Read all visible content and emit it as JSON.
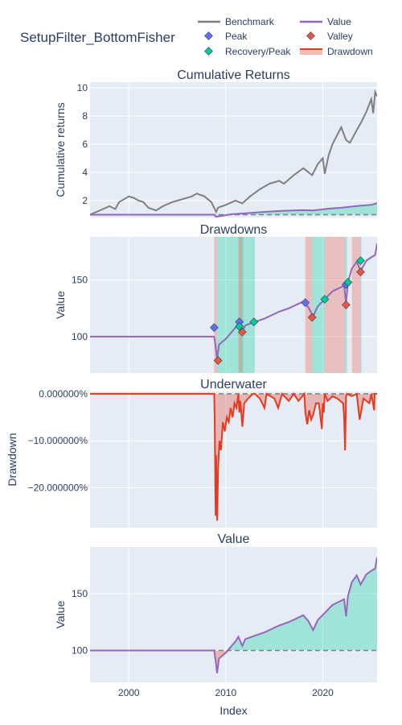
{
  "title": "SetupFilter_BottomFisher",
  "legend": {
    "benchmark": "Benchmark",
    "value": "Value",
    "peak": "Peak",
    "valley": "Valley",
    "recovery_peak": "Recovery/Peak",
    "drawdown": "Drawdown"
  },
  "colors": {
    "benchmark": "#7f7f7f",
    "value": "#9467bd",
    "peak": "#636efa",
    "valley": "#ef553b",
    "recovery": "#00cc96",
    "drawdown": "#e6391e",
    "plot_bg": "#e5ecf6",
    "grid": "#ffffff",
    "text": "#2a3f5f"
  },
  "chart_data": [
    {
      "type": "line",
      "title": "Cumulative Returns",
      "xlabel": "",
      "ylabel": "Cumulative returns",
      "xlim": [
        1996.0,
        2025.6
      ],
      "ylim": [
        0.8,
        10.4
      ],
      "xticks": [],
      "yticks": [
        2,
        4,
        6,
        8,
        10
      ],
      "grid": true,
      "series": [
        {
          "name": "Benchmark",
          "x": [
            1996.0,
            1997.0,
            1998.0,
            1998.6,
            1999.0,
            2000.0,
            2000.5,
            2001.0,
            2001.5,
            2002.0,
            2002.8,
            2003.5,
            2004.5,
            2005.5,
            2006.5,
            2007.0,
            2007.8,
            2008.5,
            2009.0,
            2009.2,
            2010.0,
            2011.0,
            2011.7,
            2012.5,
            2013.5,
            2014.5,
            2015.5,
            2016.0,
            2017.0,
            2018.0,
            2018.9,
            2019.5,
            2020.0,
            2020.2,
            2020.6,
            2021.0,
            2021.9,
            2022.4,
            2022.8,
            2023.5,
            2024.0,
            2024.5,
            2025.0,
            2025.2,
            2025.4,
            2025.6
          ],
          "values": [
            1.0,
            1.3,
            1.6,
            1.4,
            1.9,
            2.3,
            2.2,
            2.0,
            1.9,
            1.5,
            1.3,
            1.6,
            1.9,
            2.1,
            2.3,
            2.5,
            2.3,
            1.9,
            1.2,
            1.5,
            1.7,
            2.0,
            1.8,
            2.3,
            2.8,
            3.2,
            3.4,
            3.2,
            3.8,
            4.3,
            3.8,
            4.6,
            5.0,
            3.9,
            5.2,
            6.0,
            7.2,
            6.3,
            6.1,
            7.0,
            7.6,
            8.3,
            9.2,
            8.2,
            9.7,
            9.4
          ]
        },
        {
          "name": "Value",
          "x": [
            1996.0,
            2008.8,
            2009.0,
            2010.5,
            2012.0,
            2014.0,
            2016.0,
            2018.0,
            2019.0,
            2020.5,
            2022.0,
            2023.5,
            2025.0,
            2025.6
          ],
          "values": [
            1.0,
            1.0,
            0.85,
            1.03,
            1.1,
            1.2,
            1.28,
            1.32,
            1.3,
            1.42,
            1.5,
            1.62,
            1.7,
            1.82
          ]
        }
      ]
    },
    {
      "type": "line",
      "title": "Drawdowns",
      "xlabel": "",
      "ylabel": "Value",
      "xlim": [
        1996.0,
        2025.6
      ],
      "ylim": [
        68,
        188
      ],
      "yticks": [
        100,
        150
      ],
      "grid": true,
      "drawdown_periods": [
        {
          "start": 2008.8,
          "valley": 2009.1,
          "end": 2013.0
        },
        {
          "start": 2011.3,
          "valley": 2011.7,
          "end": 2011.7
        },
        {
          "start": 2018.2,
          "valley": 2018.9,
          "end": 2020.2
        },
        {
          "start": 2020.2,
          "valley": 2022.3,
          "end": 2022.5
        },
        {
          "start": 2023.0,
          "valley": 2023.9,
          "end": 2023.9
        }
      ],
      "series": [
        {
          "name": "Value",
          "x": [
            1996.0,
            2008.8,
            2009.0,
            2009.1,
            2009.3,
            2010.0,
            2010.5,
            2011.0,
            2011.3,
            2011.7,
            2012.0,
            2013.0,
            2014.0,
            2015.5,
            2016.5,
            2018.0,
            2018.5,
            2019.0,
            2019.5,
            2020.2,
            2021.0,
            2022.2,
            2022.4,
            2022.6,
            2023.0,
            2023.5,
            2023.9,
            2024.5,
            2025.0,
            2025.4,
            2025.6
          ],
          "values": [
            100,
            100,
            88,
            80,
            93,
            98,
            103,
            108,
            112,
            104,
            110,
            113,
            116,
            122,
            125,
            131,
            126,
            118,
            127,
            133,
            140,
            145,
            130,
            148,
            160,
            166,
            158,
            167,
            170,
            172,
            182
          ]
        }
      ],
      "markers": {
        "peak": {
          "x": [
            2008.8,
            2011.4,
            2018.2,
            2022.4
          ],
          "y": [
            108,
            113,
            130,
            146
          ]
        },
        "valley": {
          "x": [
            2009.2,
            2011.7,
            2018.9,
            2022.4,
            2023.9
          ],
          "y": [
            79,
            104,
            117,
            128,
            157
          ]
        },
        "recovery": {
          "x": [
            2011.4,
            2012.9,
            2020.2,
            2022.6,
            2023.9
          ],
          "y": [
            109,
            113,
            133,
            148,
            167
          ]
        }
      }
    },
    {
      "type": "area",
      "title": "Underwater",
      "xlabel": "",
      "ylabel": "Drawdown",
      "xlim": [
        1996.0,
        2025.6
      ],
      "ylim": [
        -0.285,
        0.005
      ],
      "yticks": [
        0,
        -0.1,
        -0.2
      ],
      "ytick_labels": [
        "0.000000%",
        "−10.000000%",
        "−20.000000%"
      ],
      "grid": true,
      "series": [
        {
          "name": "Drawdown",
          "x": [
            1996.0,
            2008.8,
            2008.85,
            2008.95,
            2009.0,
            2009.05,
            2009.12,
            2009.2,
            2009.35,
            2009.5,
            2009.7,
            2009.9,
            2010.1,
            2010.3,
            2010.5,
            2010.7,
            2010.9,
            2011.1,
            2011.3,
            2011.4,
            2011.5,
            2011.6,
            2011.7,
            2011.9,
            2012.3,
            2012.8,
            2013.0,
            2013.5,
            2014.0,
            2014.2,
            2015.0,
            2015.4,
            2015.8,
            2016.5,
            2017.0,
            2017.5,
            2018.1,
            2018.2,
            2018.4,
            2018.6,
            2018.8,
            2019.0,
            2019.3,
            2019.6,
            2019.9,
            2020.0,
            2020.1,
            2020.2,
            2020.5,
            2021.0,
            2021.5,
            2022.1,
            2022.2,
            2022.3,
            2022.4,
            2022.5,
            2023.0,
            2023.5,
            2023.8,
            2024.2,
            2024.8,
            2025.0,
            2025.3,
            2025.35,
            2025.6
          ],
          "values": [
            0,
            0,
            -0.05,
            -0.26,
            -0.13,
            -0.22,
            -0.27,
            -0.16,
            -0.1,
            -0.12,
            -0.06,
            -0.08,
            -0.05,
            -0.06,
            -0.03,
            -0.05,
            -0.02,
            -0.03,
            0,
            -0.04,
            -0.015,
            -0.04,
            -0.07,
            -0.02,
            -0.01,
            0,
            0,
            -0.01,
            -0.03,
            0,
            -0.01,
            -0.03,
            0,
            -0.015,
            0,
            -0.015,
            0,
            -0.04,
            -0.065,
            -0.035,
            -0.055,
            -0.045,
            -0.02,
            -0.02,
            -0.075,
            -0.02,
            -0.04,
            0,
            -0.015,
            -0.005,
            -0.01,
            -0.02,
            -0.05,
            -0.12,
            -0.005,
            0,
            -0.005,
            0,
            -0.055,
            -0.01,
            -0.02,
            0,
            -0.035,
            0,
            0
          ]
        }
      ]
    },
    {
      "type": "area",
      "title": "Value",
      "xlabel": "Index",
      "ylabel": "Value",
      "xlim": [
        1996.0,
        2025.6
      ],
      "ylim": [
        72,
        191
      ],
      "xticks": [
        2000,
        2010,
        2020
      ],
      "yticks": [
        100,
        150
      ],
      "grid": true,
      "baseline": 100,
      "series": [
        {
          "name": "Value",
          "x": [
            1996.0,
            2008.8,
            2009.0,
            2009.1,
            2009.3,
            2010.0,
            2010.5,
            2011.0,
            2011.3,
            2011.7,
            2012.0,
            2013.0,
            2014.0,
            2015.5,
            2016.5,
            2018.0,
            2018.5,
            2019.0,
            2019.5,
            2020.2,
            2021.0,
            2022.2,
            2022.4,
            2022.6,
            2023.0,
            2023.5,
            2023.9,
            2024.5,
            2025.0,
            2025.4,
            2025.6
          ],
          "values": [
            100,
            100,
            88,
            80,
            93,
            98,
            103,
            108,
            112,
            104,
            110,
            113,
            116,
            122,
            125,
            131,
            126,
            118,
            127,
            133,
            140,
            145,
            130,
            148,
            160,
            166,
            158,
            167,
            170,
            172,
            182
          ]
        }
      ]
    }
  ]
}
